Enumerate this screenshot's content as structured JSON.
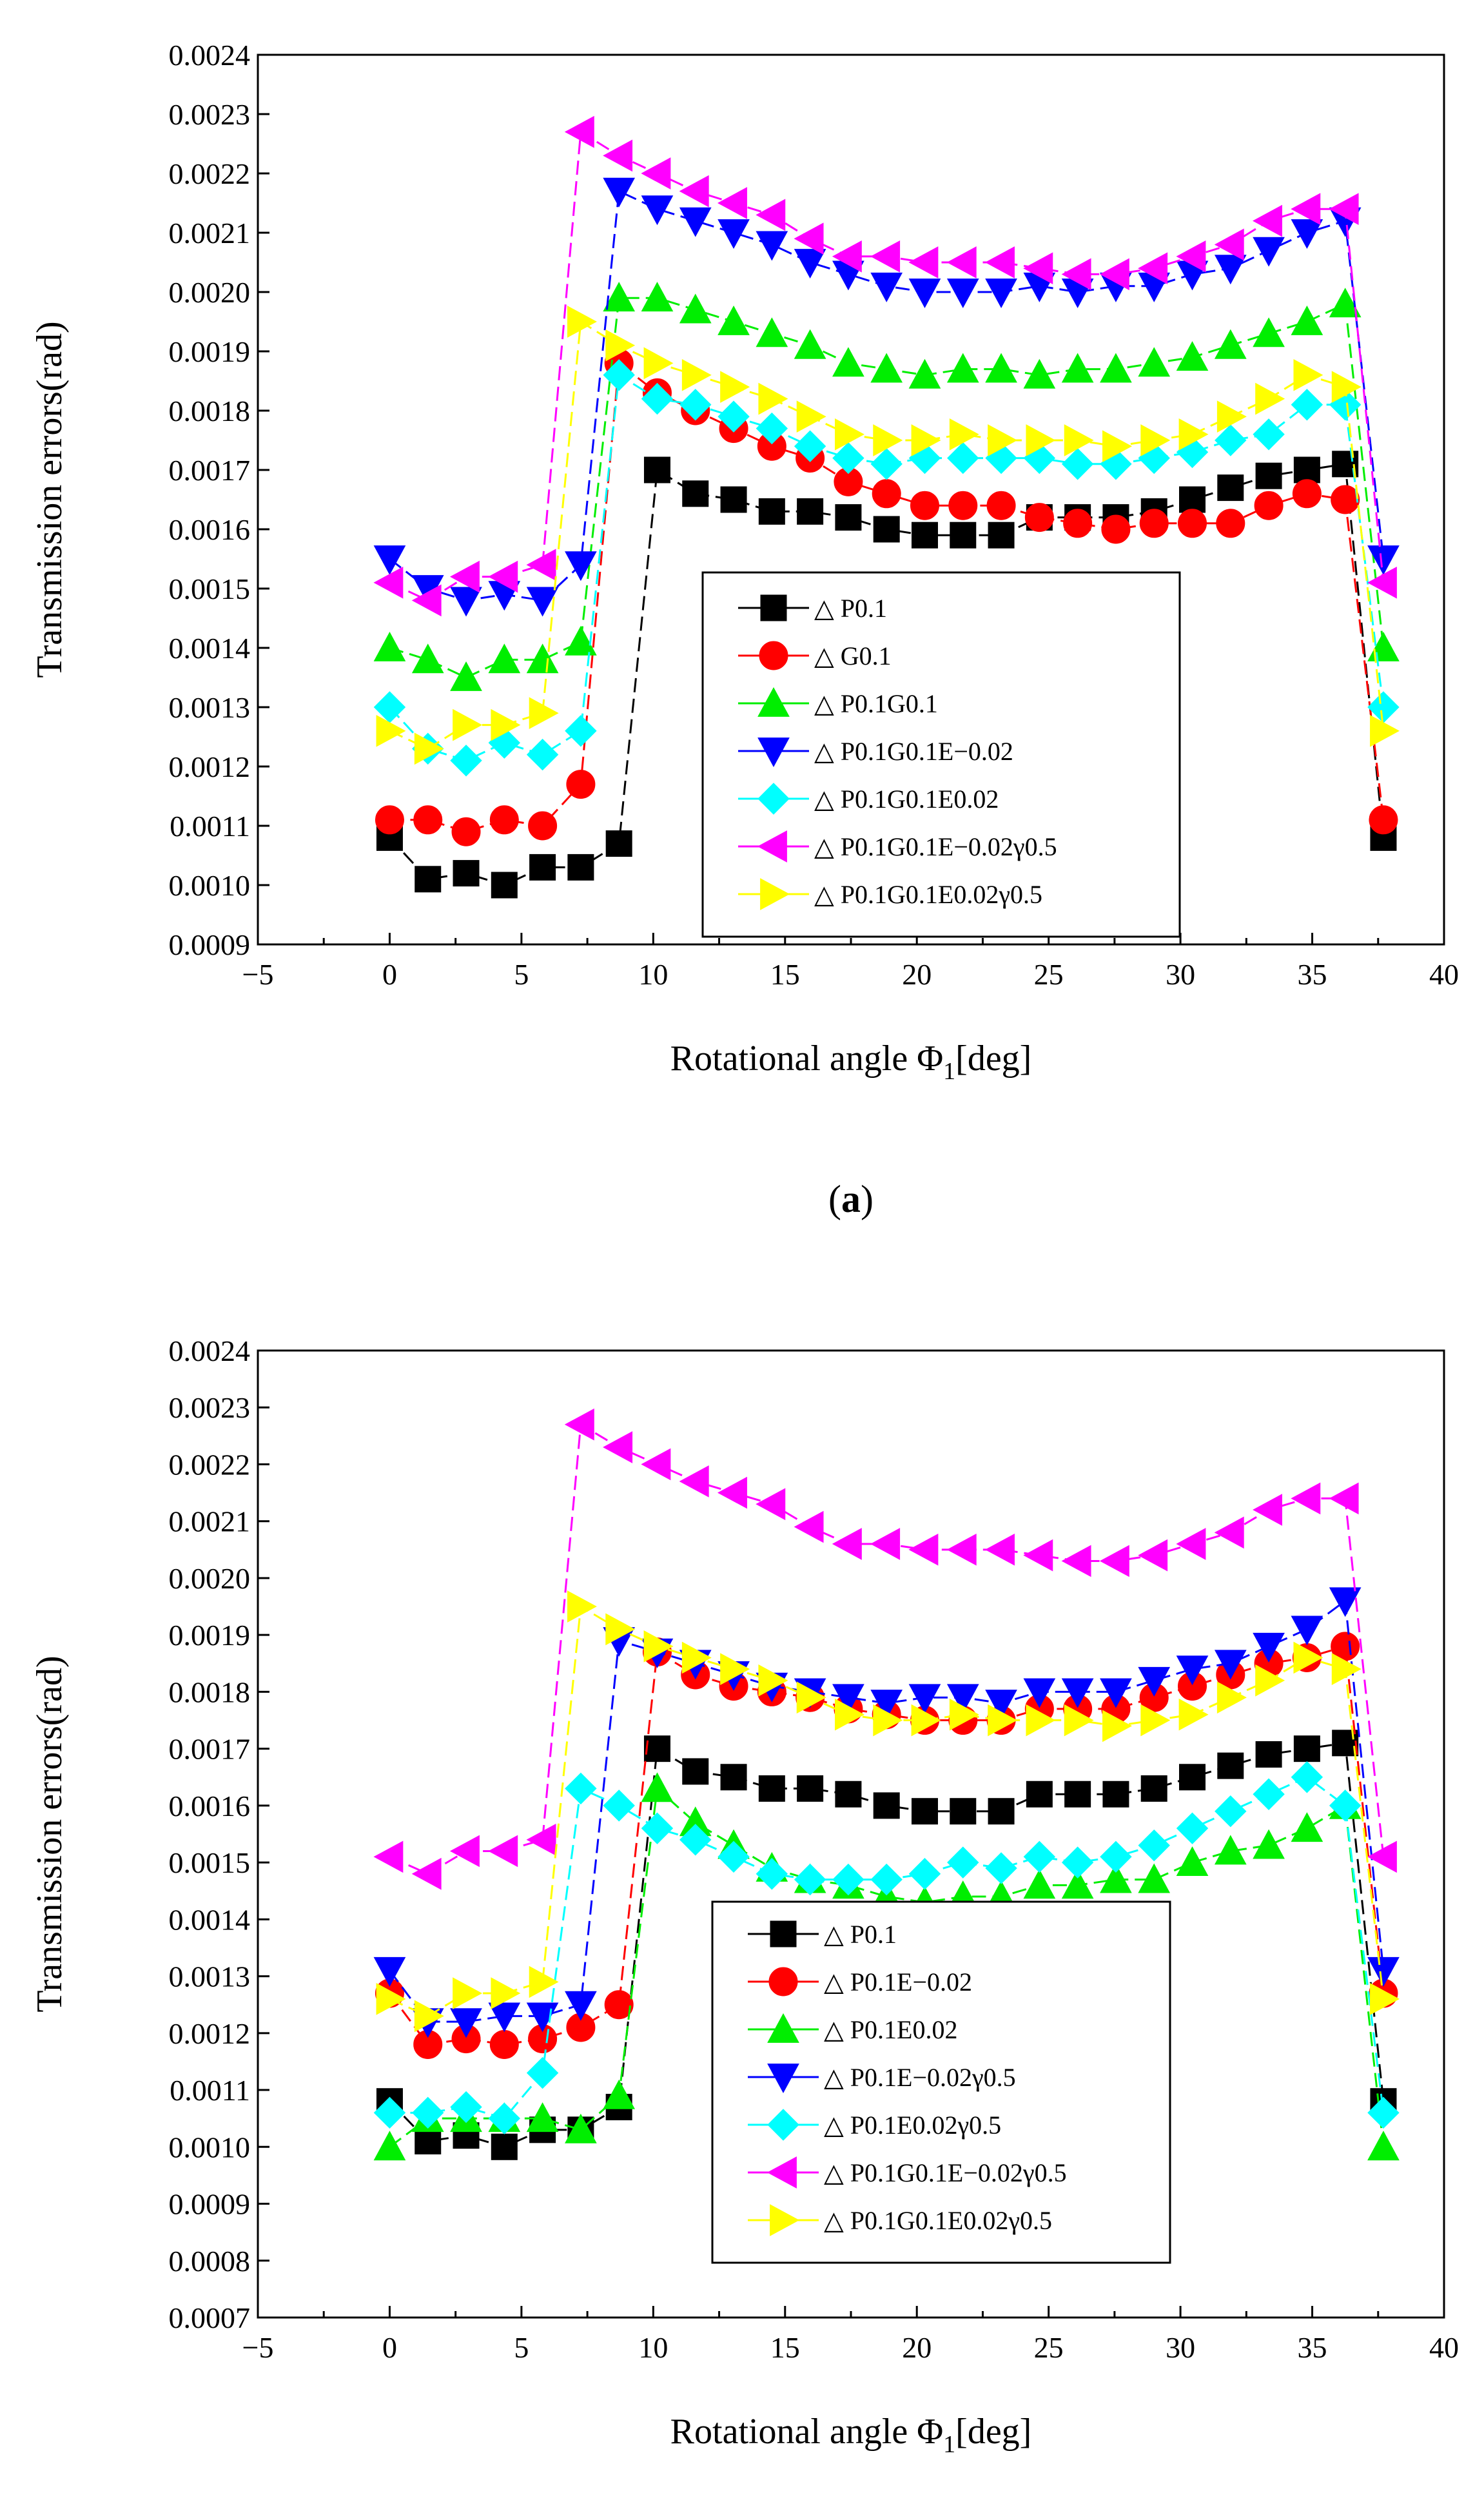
{
  "figure": {
    "panels": [
      "(a)",
      "(b)"
    ]
  },
  "chart_data": [
    {
      "type": "line",
      "panel_label": "(a)",
      "panel_letter": "a",
      "xlabel": "Rotational angle Φ1[deg]",
      "xlabel_main": "Rotational angle Φ",
      "xlabel_sub": "1",
      "xlabel_tail": "[deg]",
      "ylabel": "Transmission errors(rad)",
      "xlim": [
        -5,
        40
      ],
      "ylim": [
        0.0009,
        0.0024
      ],
      "xticks": [
        -5,
        0,
        5,
        10,
        15,
        20,
        25,
        30,
        35,
        40
      ],
      "yticks": [
        0.0009,
        0.001,
        0.0011,
        0.0012,
        0.0013,
        0.0014,
        0.0015,
        0.0016,
        0.0017,
        0.0018,
        0.0019,
        0.002,
        0.0021,
        0.0022,
        0.0023,
        0.0024
      ],
      "legend_position": "center-right",
      "x": [
        0,
        1.45,
        2.9,
        4.35,
        5.8,
        7.25,
        8.7,
        10.15,
        11.6,
        13.05,
        14.5,
        15.95,
        17.4,
        18.85,
        20.3,
        21.75,
        23.2,
        24.65,
        26.1,
        27.55,
        29.0,
        30.45,
        31.9,
        33.35,
        34.8,
        36.25,
        37.7
      ],
      "series": [
        {
          "name": "△ P0.1",
          "color": "#000000",
          "marker": "square",
          "values": [
            0.00108,
            0.00101,
            0.00102,
            0.001,
            0.00103,
            0.00103,
            0.00107,
            0.0017,
            0.00166,
            0.00165,
            0.00163,
            0.00163,
            0.00162,
            0.0016,
            0.00159,
            0.00159,
            0.00159,
            0.00162,
            0.00162,
            0.00162,
            0.00163,
            0.00165,
            0.00167,
            0.00169,
            0.0017,
            0.00171,
            0.00108
          ]
        },
        {
          "name": "△ G0.1",
          "color": "#ff0000",
          "marker": "circle",
          "values": [
            0.00111,
            0.00111,
            0.00109,
            0.00111,
            0.0011,
            0.00117,
            0.00188,
            0.00183,
            0.0018,
            0.00177,
            0.00174,
            0.00172,
            0.00168,
            0.00166,
            0.00164,
            0.00164,
            0.00164,
            0.00162,
            0.00161,
            0.0016,
            0.00161,
            0.00161,
            0.00161,
            0.00164,
            0.00166,
            0.00165,
            0.00111
          ]
        },
        {
          "name": "△ P0.1G0.1",
          "color": "#00ee00",
          "marker": "triangle-up",
          "values": [
            0.0014,
            0.00138,
            0.00135,
            0.00138,
            0.00138,
            0.00141,
            0.00199,
            0.00199,
            0.00197,
            0.00195,
            0.00193,
            0.00191,
            0.00188,
            0.00187,
            0.00186,
            0.00187,
            0.00187,
            0.00186,
            0.00187,
            0.00187,
            0.00188,
            0.00189,
            0.00191,
            0.00193,
            0.00195,
            0.00198,
            0.0014
          ]
        },
        {
          "name": "△ P0.1G0.1E−0.02",
          "color": "#0000ff",
          "marker": "triangle-down",
          "values": [
            0.00155,
            0.0015,
            0.00148,
            0.00149,
            0.00148,
            0.00154,
            0.00217,
            0.00214,
            0.00212,
            0.0021,
            0.00208,
            0.00205,
            0.00203,
            0.00201,
            0.002,
            0.002,
            0.002,
            0.00201,
            0.002,
            0.00201,
            0.00201,
            0.00203,
            0.00204,
            0.00207,
            0.0021,
            0.00212,
            0.00155
          ]
        },
        {
          "name": "△ P0.1G0.1E0.02",
          "color": "#00ffff",
          "marker": "diamond",
          "values": [
            0.0013,
            0.00123,
            0.00121,
            0.00124,
            0.00122,
            0.00126,
            0.00186,
            0.00182,
            0.00181,
            0.00179,
            0.00177,
            0.00174,
            0.00172,
            0.00171,
            0.00172,
            0.00172,
            0.00172,
            0.00172,
            0.00171,
            0.00171,
            0.00172,
            0.00173,
            0.00175,
            0.00176,
            0.00181,
            0.00181,
            0.0013
          ]
        },
        {
          "name": "△ P0.1G0.1E−0.02γ0.5",
          "color": "#ff00ff",
          "marker": "triangle-left",
          "values": [
            0.00151,
            0.00148,
            0.00152,
            0.00152,
            0.00154,
            0.00227,
            0.00223,
            0.0022,
            0.00217,
            0.00215,
            0.00213,
            0.00209,
            0.00206,
            0.00206,
            0.00205,
            0.00205,
            0.00205,
            0.00204,
            0.00203,
            0.00203,
            0.00204,
            0.00206,
            0.00208,
            0.00212,
            0.00214,
            0.00214,
            0.00151
          ]
        },
        {
          "name": "△ P0.1G0.1E0.02γ0.5",
          "color": "#ffff00",
          "marker": "triangle-right",
          "values": [
            0.00126,
            0.00123,
            0.00127,
            0.00127,
            0.00129,
            0.00195,
            0.00191,
            0.00188,
            0.00186,
            0.00184,
            0.00182,
            0.00179,
            0.00176,
            0.00175,
            0.00175,
            0.00176,
            0.00175,
            0.00175,
            0.00175,
            0.00174,
            0.00175,
            0.00176,
            0.00179,
            0.00182,
            0.00186,
            0.00184,
            0.00126
          ]
        }
      ]
    },
    {
      "type": "line",
      "panel_label": "(b)",
      "panel_letter": "b",
      "xlabel": "Rotational angle Φ1[deg]",
      "xlabel_main": "Rotational angle Φ",
      "xlabel_sub": "1",
      "xlabel_tail": "[deg]",
      "ylabel": "Transmission errors(rad)",
      "xlim": [
        -5,
        40
      ],
      "ylim": [
        0.0007,
        0.0024
      ],
      "xticks": [
        -5,
        0,
        5,
        10,
        15,
        20,
        25,
        30,
        35,
        40
      ],
      "yticks": [
        0.0007,
        0.0008,
        0.0009,
        0.001,
        0.0011,
        0.0012,
        0.0013,
        0.0014,
        0.0015,
        0.0016,
        0.0017,
        0.0018,
        0.0019,
        0.002,
        0.0021,
        0.0022,
        0.0023,
        0.0024
      ],
      "legend_position": "center-right",
      "x": [
        0,
        1.45,
        2.9,
        4.35,
        5.8,
        7.25,
        8.7,
        10.15,
        11.6,
        13.05,
        14.5,
        15.95,
        17.4,
        18.85,
        20.3,
        21.75,
        23.2,
        24.65,
        26.1,
        27.55,
        29.0,
        30.45,
        31.9,
        33.35,
        34.8,
        36.25,
        37.7
      ],
      "series": [
        {
          "name": "△ P0.1",
          "color": "#000000",
          "marker": "square",
          "values": [
            0.00108,
            0.00101,
            0.00102,
            0.001,
            0.00103,
            0.00103,
            0.00107,
            0.0017,
            0.00166,
            0.00165,
            0.00163,
            0.00163,
            0.00162,
            0.0016,
            0.00159,
            0.00159,
            0.00159,
            0.00162,
            0.00162,
            0.00162,
            0.00163,
            0.00165,
            0.00167,
            0.00169,
            0.0017,
            0.00171,
            0.00108
          ]
        },
        {
          "name": "△ P0.1E−0.02",
          "color": "#ff0000",
          "marker": "circle",
          "values": [
            0.00127,
            0.00118,
            0.00119,
            0.00118,
            0.00119,
            0.00121,
            0.00125,
            0.00187,
            0.00183,
            0.00181,
            0.0018,
            0.00179,
            0.00177,
            0.00176,
            0.00175,
            0.00175,
            0.00175,
            0.00177,
            0.00177,
            0.00177,
            0.00179,
            0.00181,
            0.00183,
            0.00185,
            0.00186,
            0.00188,
            0.00127
          ]
        },
        {
          "name": "△ P0.1E0.02",
          "color": "#00ee00",
          "marker": "triangle-up",
          "values": [
            0.001,
            0.00105,
            0.00105,
            0.00105,
            0.00105,
            0.00103,
            0.00109,
            0.00163,
            0.00157,
            0.00153,
            0.00149,
            0.00147,
            0.00146,
            0.00144,
            0.00143,
            0.00144,
            0.00144,
            0.00146,
            0.00146,
            0.00147,
            0.00147,
            0.0015,
            0.00152,
            0.00153,
            0.00156,
            0.0016,
            0.001
          ]
        },
        {
          "name": "△ P0.1E−0.02γ0.5",
          "color": "#0000ff",
          "marker": "triangle-down",
          "values": [
            0.00131,
            0.00122,
            0.00122,
            0.00123,
            0.00123,
            0.00125,
            0.00189,
            0.00187,
            0.00185,
            0.00183,
            0.00181,
            0.0018,
            0.00179,
            0.00178,
            0.00179,
            0.00179,
            0.00178,
            0.0018,
            0.0018,
            0.0018,
            0.00182,
            0.00184,
            0.00185,
            0.00188,
            0.00191,
            0.00196,
            0.00131
          ]
        },
        {
          "name": "△ P0.1E0.02γ0.5",
          "color": "#00ffff",
          "marker": "diamond",
          "values": [
            0.00106,
            0.00106,
            0.00107,
            0.00105,
            0.00113,
            0.00163,
            0.0016,
            0.00156,
            0.00154,
            0.00151,
            0.00148,
            0.00147,
            0.00147,
            0.00147,
            0.00148,
            0.0015,
            0.00149,
            0.00151,
            0.0015,
            0.00151,
            0.00153,
            0.00156,
            0.00159,
            0.00162,
            0.00165,
            0.0016,
            0.00106
          ]
        },
        {
          "name": "△ P0.1G0.1E−0.02γ0.5",
          "color": "#ff00ff",
          "marker": "triangle-left",
          "values": [
            0.00151,
            0.00148,
            0.00152,
            0.00152,
            0.00154,
            0.00227,
            0.00223,
            0.0022,
            0.00217,
            0.00215,
            0.00213,
            0.00209,
            0.00206,
            0.00206,
            0.00205,
            0.00205,
            0.00205,
            0.00204,
            0.00203,
            0.00203,
            0.00204,
            0.00206,
            0.00208,
            0.00212,
            0.00214,
            0.00214,
            0.00151
          ]
        },
        {
          "name": "△ P0.1G0.1E0.02γ0.5",
          "color": "#ffff00",
          "marker": "triangle-right",
          "values": [
            0.00126,
            0.00123,
            0.00127,
            0.00127,
            0.00129,
            0.00195,
            0.00191,
            0.00188,
            0.00186,
            0.00184,
            0.00182,
            0.00179,
            0.00176,
            0.00175,
            0.00175,
            0.00176,
            0.00175,
            0.00175,
            0.00175,
            0.00174,
            0.00175,
            0.00176,
            0.00179,
            0.00182,
            0.00186,
            0.00184,
            0.00126
          ]
        }
      ]
    }
  ]
}
